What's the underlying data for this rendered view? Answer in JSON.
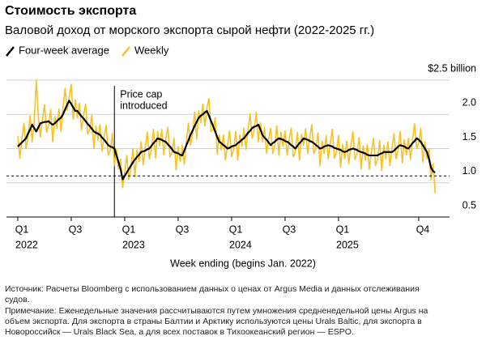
{
  "chart_data": {
    "type": "line",
    "title": "Стоимость экспорта",
    "subtitle": "Валовой доход от морского экспорта сырой нефти (2022-2025 гг.)",
    "xlabel": "Week ending (begins Jan. 2022)",
    "x": [
      0,
      1,
      2,
      3,
      4,
      5,
      6,
      7,
      8,
      9,
      10,
      11,
      12,
      13,
      14,
      15,
      16,
      17,
      18,
      19,
      20,
      21,
      22,
      23,
      24,
      25,
      26,
      27,
      28,
      29,
      30,
      31,
      32,
      33,
      34,
      35,
      36,
      37,
      38,
      39,
      40,
      41,
      42,
      43,
      44,
      45,
      46,
      47,
      48,
      49,
      50,
      51,
      52,
      53,
      54,
      55,
      56,
      57,
      58,
      59,
      60,
      61,
      62,
      63,
      64,
      65,
      66,
      67,
      68,
      69,
      70,
      71,
      72,
      73,
      74,
      75,
      76,
      77,
      78,
      79,
      80,
      81,
      82,
      83,
      84,
      85,
      86,
      87,
      88,
      89,
      90,
      91,
      92,
      93,
      94,
      95,
      96,
      97,
      98,
      99,
      100,
      101,
      102,
      103,
      104,
      105,
      106,
      107,
      108,
      109,
      110,
      111,
      112,
      113,
      114,
      115,
      116,
      117,
      118,
      119,
      120,
      121,
      122,
      123,
      124,
      125,
      126,
      127,
      128,
      129,
      130,
      131,
      132,
      133,
      134,
      135,
      136,
      137,
      138,
      139,
      140,
      141,
      142,
      143,
      144,
      145,
      146,
      147,
      148,
      149,
      150,
      151,
      152,
      153,
      154,
      155,
      156,
      157,
      158,
      159,
      160,
      161,
      162,
      163,
      164,
      165,
      166,
      167,
      168,
      169,
      170,
      171,
      172,
      173,
      174,
      175,
      176,
      177,
      178,
      179,
      180,
      181,
      182,
      183,
      184,
      185,
      186,
      187,
      188,
      189,
      190,
      191,
      192,
      193,
      194,
      195,
      196,
      197,
      198,
      199,
      200,
      201,
      202,
      203
    ],
    "series": [
      {
        "name": "Four-week average",
        "color": "#000000",
        "values": [
          1.53,
          1.56,
          1.59,
          1.62,
          1.65,
          1.72,
          1.78,
          1.85,
          1.8,
          1.75,
          1.81,
          1.87,
          1.88,
          1.89,
          1.89,
          1.9,
          1.87,
          1.85,
          1.87,
          1.9,
          1.93,
          1.95,
          2.0,
          2.07,
          2.14,
          2.2,
          2.15,
          2.1,
          2.05,
          2.05,
          2.01,
          1.97,
          1.94,
          1.9,
          1.86,
          1.83,
          1.79,
          1.75,
          1.73,
          1.72,
          1.7,
          1.66,
          1.63,
          1.59,
          1.55,
          1.53,
          1.52,
          1.5,
          1.4,
          1.3,
          1.2,
          1.05,
          1.1,
          1.15,
          1.2,
          1.25,
          1.3,
          1.34,
          1.38,
          1.41,
          1.45,
          1.46,
          1.47,
          1.49,
          1.5,
          1.54,
          1.58,
          1.61,
          1.65,
          1.64,
          1.63,
          1.61,
          1.6,
          1.56,
          1.53,
          1.49,
          1.45,
          1.44,
          1.43,
          1.41,
          1.4,
          1.47,
          1.55,
          1.62,
          1.7,
          1.76,
          1.83,
          1.89,
          1.95,
          1.98,
          2.0,
          2.03,
          2.05,
          1.98,
          1.9,
          1.83,
          1.75,
          1.67,
          1.6,
          1.58,
          1.55,
          1.53,
          1.5,
          1.51,
          1.53,
          1.54,
          1.55,
          1.58,
          1.6,
          1.63,
          1.65,
          1.69,
          1.73,
          1.76,
          1.8,
          1.82,
          1.83,
          1.85,
          1.78,
          1.7,
          1.66,
          1.63,
          1.59,
          1.55,
          1.58,
          1.6,
          1.63,
          1.65,
          1.64,
          1.63,
          1.61,
          1.6,
          1.58,
          1.55,
          1.53,
          1.5,
          1.54,
          1.58,
          1.61,
          1.65,
          1.64,
          1.63,
          1.61,
          1.6,
          1.58,
          1.55,
          1.53,
          1.5,
          1.51,
          1.53,
          1.54,
          1.55,
          1.54,
          1.53,
          1.51,
          1.5,
          1.49,
          1.48,
          1.46,
          1.45,
          1.46,
          1.48,
          1.49,
          1.5,
          1.49,
          1.48,
          1.46,
          1.45,
          1.44,
          1.43,
          1.41,
          1.4,
          1.4,
          1.4,
          1.4,
          1.4,
          1.42,
          1.43,
          1.45,
          1.45,
          1.45,
          1.45,
          1.45,
          1.47,
          1.5,
          1.53,
          1.55,
          1.54,
          1.53,
          1.51,
          1.5,
          1.54,
          1.58,
          1.61,
          1.65,
          1.63,
          1.6,
          1.55,
          1.5,
          1.45,
          1.35,
          1.22,
          1.17,
          1.15
        ]
      },
      {
        "name": "Weekly",
        "color": "#f5c324",
        "values": [
          1.68,
          1.36,
          1.64,
          1.87,
          1.5,
          1.67,
          1.98,
          1.6,
          1.9,
          2.5,
          1.96,
          1.67,
          1.93,
          2.14,
          1.74,
          1.85,
          2.07,
          1.6,
          1.97,
          1.8,
          2.08,
          1.75,
          2.09,
          2.38,
          2.06,
          2.25,
          2.44,
          1.93,
          2.21,
          1.95,
          2.16,
          1.77,
          1.99,
          2.15,
          1.71,
          1.78,
          1.99,
          1.5,
          1.83,
          1.62,
          1.85,
          1.46,
          1.68,
          1.84,
          1.4,
          1.48,
          1.72,
          1.25,
          1.5,
          1.2,
          1.35,
          0.93,
          1.15,
          1.4,
          1.05,
          1.2,
          1.5,
          1.09,
          1.48,
          1.31,
          1.6,
          1.26,
          1.52,
          1.74,
          1.35,
          1.49,
          1.78,
          1.36,
          1.75,
          1.54,
          1.78,
          1.41,
          1.65,
          1.81,
          1.38,
          1.44,
          1.65,
          1.19,
          1.53,
          1.31,
          1.55,
          1.27,
          1.6,
          1.87,
          1.55,
          1.71,
          2.03,
          1.64,
          2.05,
          1.88,
          2.15,
          1.83,
          2.1,
          2.23,
          1.75,
          1.78,
          1.95,
          1.42,
          1.7,
          1.48,
          1.7,
          1.33,
          1.55,
          1.76,
          1.38,
          1.49,
          1.75,
          1.33,
          1.7,
          1.53,
          1.8,
          1.49,
          1.78,
          2.01,
          1.65,
          1.77,
          2.03,
          1.6,
          1.88,
          1.6,
          1.81,
          1.43,
          1.64,
          1.8,
          1.43,
          1.55,
          1.83,
          1.4,
          1.74,
          1.53,
          1.76,
          1.4,
          1.63,
          1.8,
          1.38,
          1.45,
          1.74,
          1.33,
          1.71,
          1.55,
          1.79,
          1.43,
          1.66,
          1.85,
          1.43,
          1.5,
          1.73,
          1.25,
          1.61,
          1.43,
          1.69,
          1.35,
          1.59,
          1.78,
          1.36,
          1.45,
          1.69,
          1.23,
          1.56,
          1.35,
          1.61,
          1.28,
          1.54,
          1.75,
          1.34,
          1.43,
          1.66,
          1.2,
          1.54,
          1.33,
          1.56,
          1.2,
          1.45,
          1.65,
          1.25,
          1.35,
          1.62,
          1.18,
          1.55,
          1.35,
          1.6,
          1.25,
          1.5,
          1.72,
          1.35,
          1.48,
          1.75,
          1.29,
          1.63,
          1.41,
          1.65,
          1.34,
          1.63,
          1.86,
          1.5,
          1.58,
          1.8,
          1.3,
          1.6,
          1.35,
          1.5,
          1.05,
          1.28,
          0.85
        ]
      }
    ],
    "xlim": [
      -5.5,
      210
    ],
    "xticks": [
      {
        "value": 0,
        "label": "Q1"
      },
      {
        "value": 26,
        "label": "Q3"
      },
      {
        "value": 52,
        "label": "Q1"
      },
      {
        "value": 78,
        "label": "Q3"
      },
      {
        "value": 104,
        "label": "Q1"
      },
      {
        "value": 130,
        "label": "Q3"
      },
      {
        "value": 156,
        "label": "Q1"
      },
      {
        "value": 195,
        "label": "Q4"
      }
    ],
    "x_year_labels": [
      {
        "value": 0,
        "label": "2022"
      },
      {
        "value": 52,
        "label": "2023"
      },
      {
        "value": 104,
        "label": "2024"
      },
      {
        "value": 156,
        "label": "2025"
      }
    ],
    "ylim": [
      0.5,
      2.5
    ],
    "yticks": [
      0.5,
      {
        "value": 1,
        "label": "1.0"
      },
      1.5,
      {
        "value": 2,
        "label": "2.0"
      },
      {
        "value": 2.5,
        "label": "$2.5 billion"
      }
    ],
    "grid": true,
    "reference_line": 1.1,
    "annotation": {
      "x": 47,
      "lines": [
        "Price cap",
        "introduced"
      ]
    },
    "legend": "top-left",
    "notes": [
      "Источник: Расчеты Bloomberg с использованием данных о ценах от Argus Media и данных отслеживания",
      "судов.",
      "Примечание: Еженедельные значения рассчитываются путем умножения средненедельной цены Argus на",
      "объем экспорта. Для экспорта в страны Балтии и Арктику используются цены Urals Baltic, для экспорта в",
      "Новороссийск — Urals Black Sea, а для всех поставок в Тихоокеанский регион — ESPO."
    ]
  }
}
